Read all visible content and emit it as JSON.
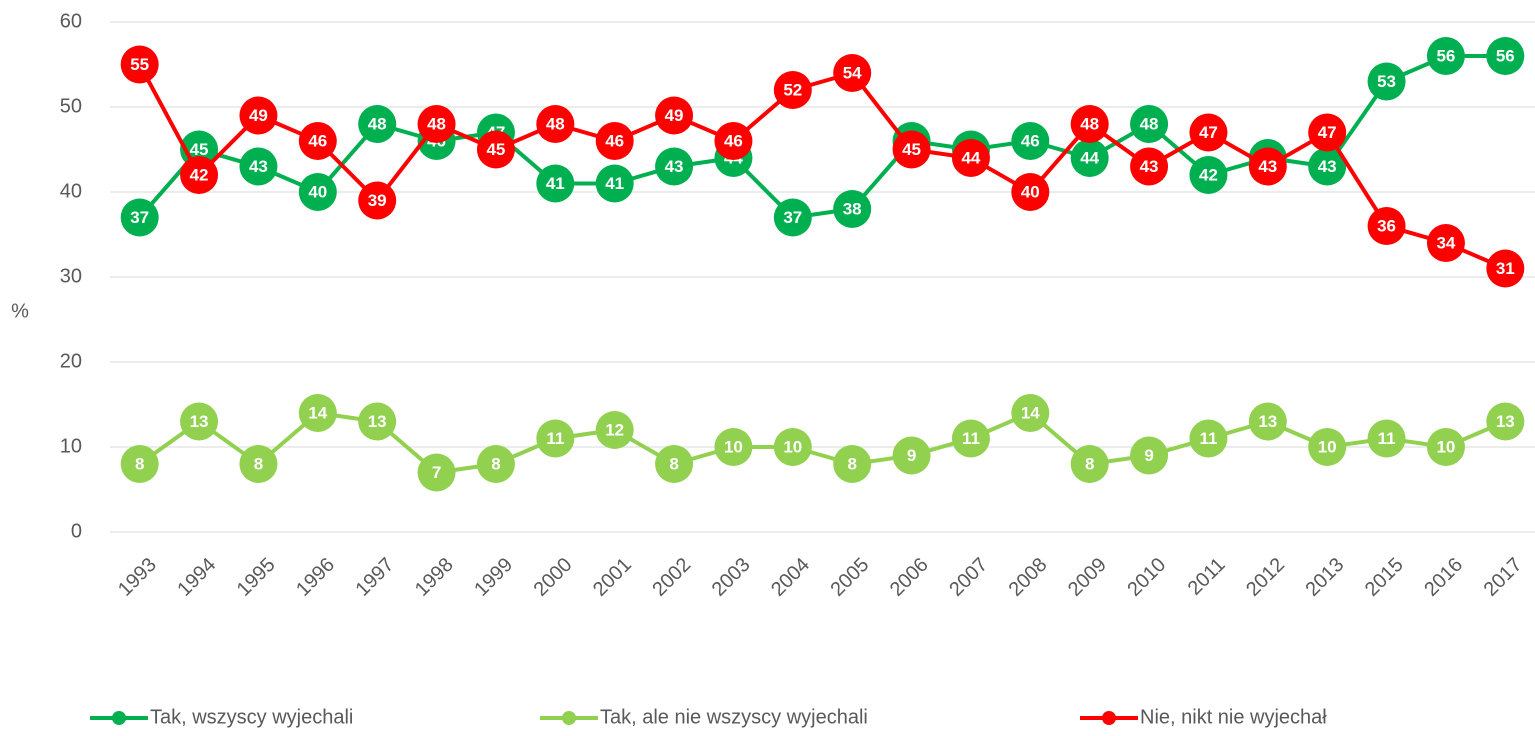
{
  "chart_data": {
    "type": "line",
    "y_label": "%",
    "categories": [
      "1993",
      "1994",
      "1995",
      "1996",
      "1997",
      "1998",
      "1999",
      "2000",
      "2001",
      "2002",
      "2003",
      "2004",
      "2005",
      "2006",
      "2007",
      "2008",
      "2009",
      "2010",
      "2011",
      "2012",
      "2013",
      "2015",
      "2016",
      "2017"
    ],
    "series": [
      {
        "name": "Tak, wszyscy wyjechali",
        "color": "#00b050",
        "values": [
          37,
          45,
          43,
          40,
          48,
          46,
          47,
          41,
          41,
          43,
          44,
          37,
          38,
          46,
          45,
          46,
          44,
          48,
          42,
          44,
          43,
          53,
          56,
          56
        ]
      },
      {
        "name": "Tak, ale nie wszyscy wyjechali",
        "color": "#92d050",
        "values": [
          8,
          13,
          8,
          14,
          13,
          7,
          8,
          11,
          12,
          8,
          10,
          10,
          8,
          9,
          11,
          14,
          8,
          9,
          11,
          13,
          10,
          11,
          10,
          13
        ]
      },
      {
        "name": "Nie, nikt nie wyjechał",
        "color": "#ff0000",
        "values": [
          55,
          42,
          49,
          46,
          39,
          48,
          45,
          48,
          46,
          49,
          46,
          52,
          54,
          45,
          44,
          40,
          48,
          43,
          47,
          43,
          47,
          36,
          34,
          31
        ]
      }
    ],
    "ylim": [
      0,
      60
    ],
    "yticks": [
      0,
      10,
      20,
      30,
      40,
      50,
      60
    ],
    "grid": true,
    "legend": "bottom"
  }
}
